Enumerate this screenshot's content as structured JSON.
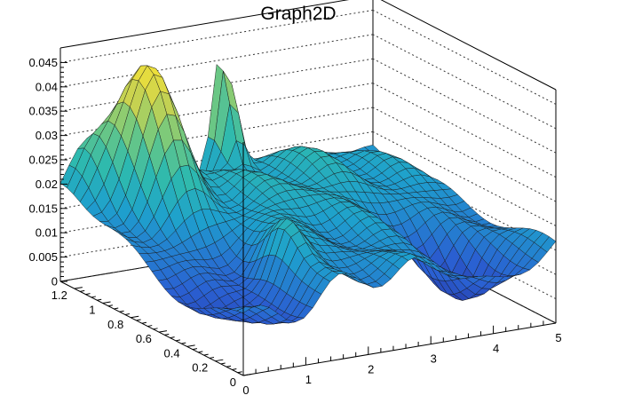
{
  "chart_data": {
    "type": "surface",
    "title": "Graph2D",
    "xlabel": "",
    "ylabel": "",
    "zlabel": "",
    "x_ticks": [
      "0",
      "1",
      "2",
      "3",
      "4",
      "5"
    ],
    "y_ticks": [
      "0",
      "0.2",
      "0.4",
      "0.6",
      "0.8",
      "1",
      "1.2"
    ],
    "z_ticks": [
      "0",
      "0.005",
      "0.01",
      "0.015",
      "0.02",
      "0.025",
      "0.03",
      "0.035",
      "0.04",
      "0.045"
    ],
    "xlim": [
      0,
      5
    ],
    "ylim": [
      0,
      1.3
    ],
    "zlim": [
      0,
      0.048
    ],
    "grid": true,
    "colormap": "viridis-like (blue to yellow)",
    "colors": {
      "low": "#2a3fb0",
      "mid": "#2aa7c9",
      "high": "#f3e33a"
    }
  }
}
